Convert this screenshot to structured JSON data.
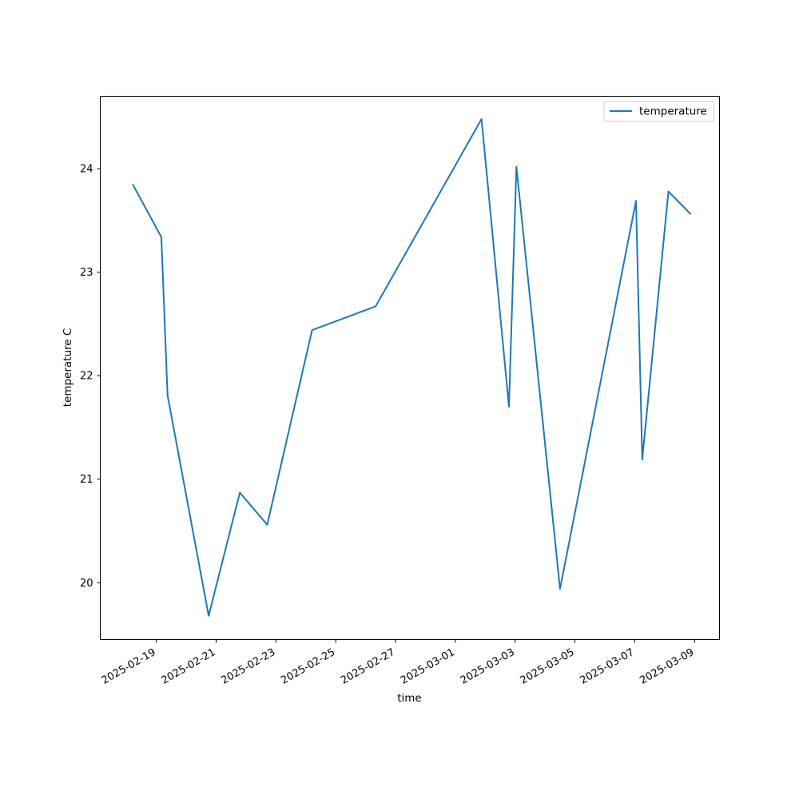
{
  "chart_data": {
    "type": "line",
    "title": "",
    "xlabel": "time",
    "ylabel": "temperature C",
    "x_ticks": [
      "2025-02-19",
      "2025-02-21",
      "2025-02-23",
      "2025-02-25",
      "2025-02-27",
      "2025-03-01",
      "2025-03-03",
      "2025-03-05",
      "2025-03-07",
      "2025-03-09"
    ],
    "y_ticks": [
      "20",
      "21",
      "22",
      "23",
      "24"
    ],
    "xlim": [
      "2025-02-17T03:00",
      "2025-03-09T20:00"
    ],
    "ylim": [
      19.45,
      24.7
    ],
    "grid": false,
    "legend": {
      "position": "top-right",
      "entries": [
        "temperature"
      ]
    },
    "colors": {
      "temperature": "#1f77b4"
    },
    "series": [
      {
        "name": "temperature",
        "points": [
          {
            "x": "2025-02-18T05:00",
            "y": 23.85
          },
          {
            "x": "2025-02-19T04:00",
            "y": 23.34
          },
          {
            "x": "2025-02-19T09:00",
            "y": 21.81
          },
          {
            "x": "2025-02-20T18:00",
            "y": 19.68
          },
          {
            "x": "2025-02-21T19:00",
            "y": 20.87
          },
          {
            "x": "2025-02-22T17:00",
            "y": 20.56
          },
          {
            "x": "2025-02-24T05:00",
            "y": 22.44
          },
          {
            "x": "2025-02-26T08:00",
            "y": 22.67
          },
          {
            "x": "2025-03-01T21:00",
            "y": 24.48
          },
          {
            "x": "2025-03-02T19:00",
            "y": 21.7
          },
          {
            "x": "2025-03-03T01:00",
            "y": 24.02
          },
          {
            "x": "2025-03-04T12:00",
            "y": 19.94
          },
          {
            "x": "2025-03-07T01:00",
            "y": 23.69
          },
          {
            "x": "2025-03-07T06:00",
            "y": 21.19
          },
          {
            "x": "2025-03-08T03:00",
            "y": 23.78
          },
          {
            "x": "2025-03-08T21:00",
            "y": 23.56
          }
        ]
      }
    ]
  }
}
